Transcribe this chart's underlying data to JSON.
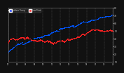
{
  "bg_color": "#111111",
  "plot_bg_color": "#111111",
  "grid_color": "#555555",
  "temp_color": "#0055ff",
  "dew_color": "#ff2222",
  "legend_temp_label": "Outdoor Temp",
  "legend_dew_label": "Dew Point",
  "legend_temp_color": "#2244ff",
  "legend_dew_color": "#ff3333",
  "ylim_min": 10,
  "ylim_max": 80,
  "xlim_min": 0,
  "xlim_max": 1440,
  "y_ticks": [
    10,
    20,
    30,
    40,
    50,
    60,
    70,
    80
  ],
  "tick_label_color": "#cccccc",
  "spine_color": "#888888",
  "dot_size": 0.5
}
